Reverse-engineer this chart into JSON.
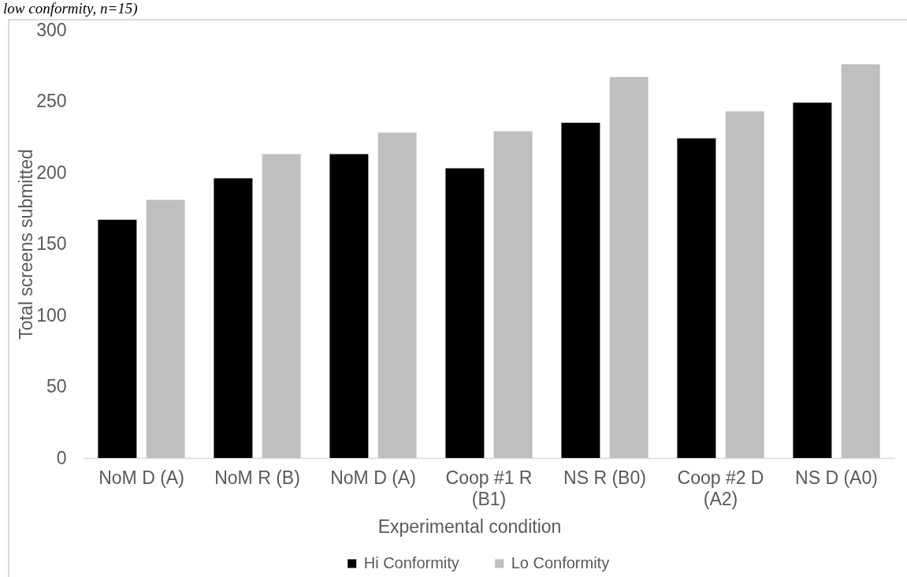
{
  "chart_data": {
    "type": "bar",
    "annotations": [
      "low conformity, n=15)"
    ],
    "xlabel": "Experimental condition",
    "ylabel": "Total screens submitted",
    "categories": [
      "NoM D (A)",
      "NoM R (B)",
      "NoM D (A)",
      "Coop #1 R (B1)",
      "NS R (B0)",
      "Coop #2 D (A2)",
      "NS D (A0)"
    ],
    "series": [
      {
        "name": "Hi Conformity",
        "color": "#000000",
        "values": [
          167,
          196,
          213,
          203,
          235,
          224,
          249
        ]
      },
      {
        "name": "Lo Conformity",
        "color": "#bfbfbf",
        "values": [
          181,
          213,
          228,
          229,
          267,
          243,
          276
        ]
      }
    ],
    "ylim": [
      0,
      300
    ],
    "yticks": [
      0,
      50,
      100,
      150,
      200,
      250,
      300
    ],
    "legend": "bottom"
  }
}
